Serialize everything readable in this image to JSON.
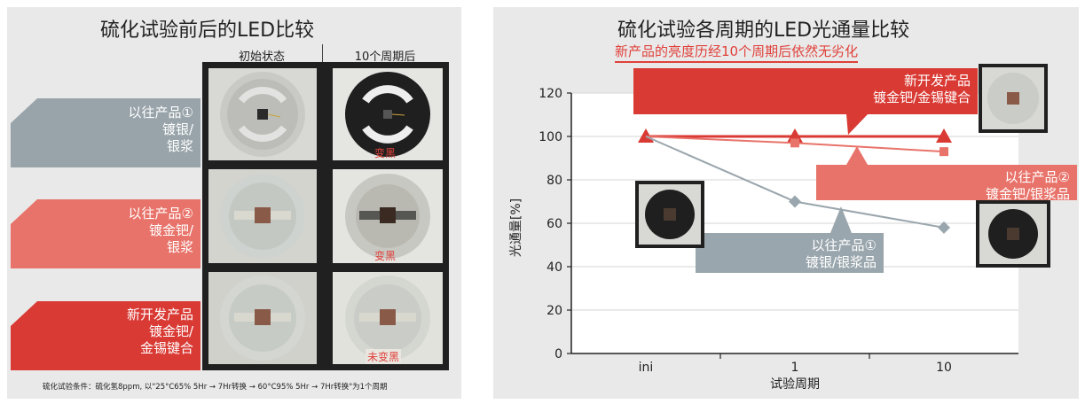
{
  "left": {
    "title": "硫化试验前后的LED比较",
    "col_before": "初始状态",
    "col_after": "10个周期后",
    "rows": [
      {
        "label": "以往产品①\n镀银/\n银浆",
        "after_note": "变黑",
        "color": "#98a4aa"
      },
      {
        "label": "以往产品②\n镀金钯/\n银浆",
        "after_note": "变黑",
        "color": "#e8736a"
      },
      {
        "label": "新开发产品\n镀金钯/\n金锡键合",
        "after_note": "未变黑",
        "color": "#d93a34"
      }
    ],
    "footnote": "硫化试验条件：硫化氢8ppm, 以\"25°C65% 5Hr → 7Hr转换 → 60°C95% 5Hr → 7Hr转换\"为1个周期"
  },
  "right": {
    "title": "硫化试验各周期的LED光通量比较",
    "subtitle": "新产品的亮度历经10个周期后依然无劣化"
  },
  "chart_data": {
    "type": "line",
    "title": "硫化试验各周期的LED光通量比较",
    "subtitle": "新产品的亮度历经10个周期后依然无劣化",
    "xlabel": "试验周期",
    "ylabel": "光通量[%]",
    "categories": [
      "ini",
      "1",
      "10"
    ],
    "ylim": [
      0,
      120
    ],
    "yticks": [
      0,
      20,
      40,
      60,
      80,
      100,
      120
    ],
    "grid": true,
    "series": [
      {
        "name": "新开发产品 镀金钯/金锡键合",
        "values": [
          100,
          100,
          100
        ],
        "color": "#d93a34",
        "marker": "triangle"
      },
      {
        "name": "以往产品② 镀金钯/银浆品",
        "values": [
          100,
          97,
          93
        ],
        "color": "#e8736a",
        "marker": "square"
      },
      {
        "name": "以往产品① 镀银/银浆品",
        "values": [
          100,
          70,
          58
        ],
        "color": "#9aa6ad",
        "marker": "diamond"
      }
    ],
    "annotations": [
      {
        "text": "新开发产品\n镀金钯/金锡键合",
        "color": "#d93a34"
      },
      {
        "text": "以往产品②\n镀金钯/银浆品",
        "color": "#e8736a"
      },
      {
        "text": "以往产品①\n镀银/银浆品",
        "color": "#9aa6ad"
      }
    ]
  }
}
